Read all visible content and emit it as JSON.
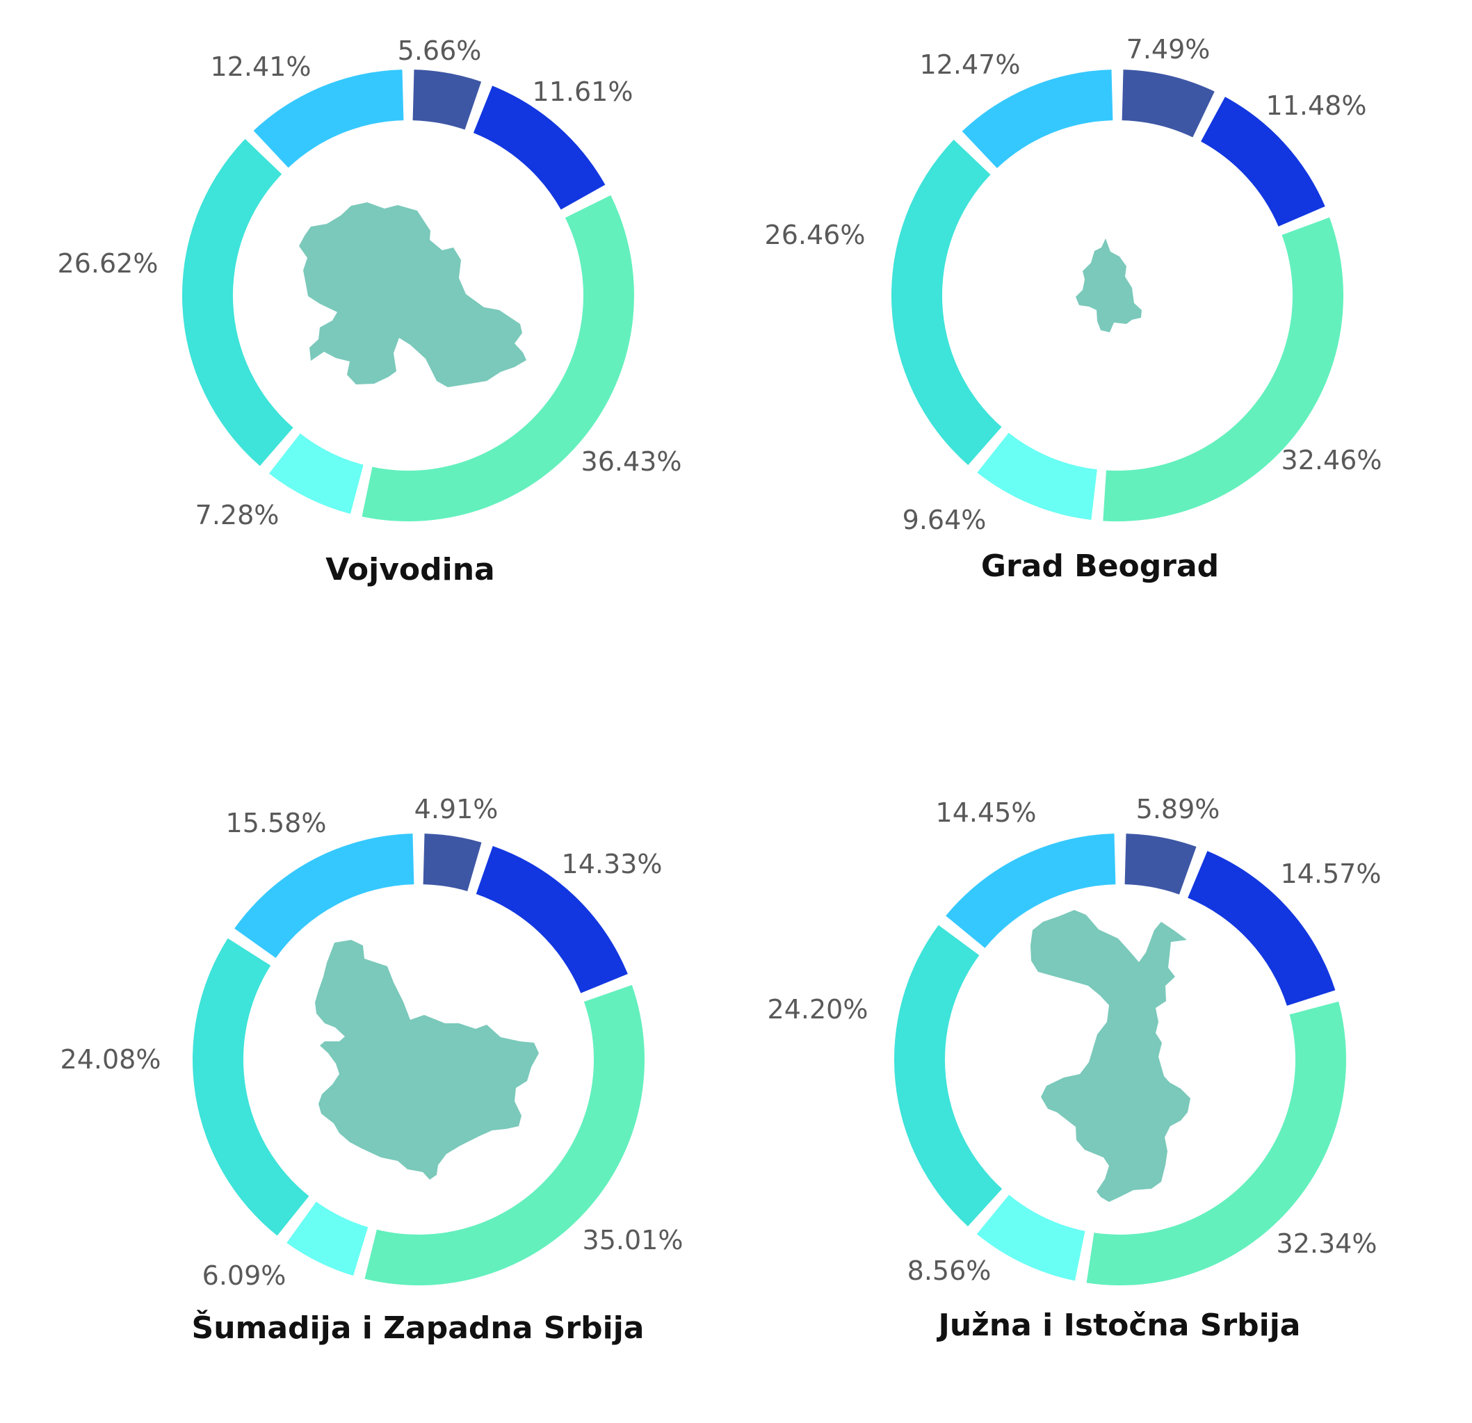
{
  "colors": [
    "#3e57a5",
    "#1237e0",
    "#63f0bd",
    "#69fff4",
    "#3ee3d9",
    "#35c8ff"
  ],
  "chart_data": [
    {
      "type": "pie",
      "title": "Vojvodina",
      "values": [
        5.66,
        11.61,
        36.43,
        7.28,
        26.62,
        12.41
      ],
      "labels": [
        "5.66%",
        "11.61%",
        "36.43%",
        "7.28%",
        "26.62%",
        "12.41%"
      ]
    },
    {
      "type": "pie",
      "title": "Grad Beograd",
      "values": [
        7.49,
        11.48,
        32.46,
        9.64,
        26.46,
        12.47
      ],
      "labels": [
        "7.49%",
        "11.48%",
        "32.46%",
        "9.64%",
        "26.46%",
        "12.47%"
      ]
    },
    {
      "type": "pie",
      "title": "Šumadija i Zapadna Srbija",
      "values": [
        4.91,
        14.33,
        35.01,
        6.09,
        24.08,
        15.58
      ],
      "labels": [
        "4.91%",
        "14.33%",
        "35.01%",
        "6.09%",
        "24.08%",
        "15.58%"
      ]
    },
    {
      "type": "pie",
      "title": "Južna i Istočna Srbija",
      "values": [
        5.89,
        14.57,
        32.34,
        8.56,
        24.2,
        14.45
      ],
      "labels": [
        "5.89%",
        "14.57%",
        "32.34%",
        "8.56%",
        "24.20%",
        "14.45%"
      ]
    }
  ]
}
